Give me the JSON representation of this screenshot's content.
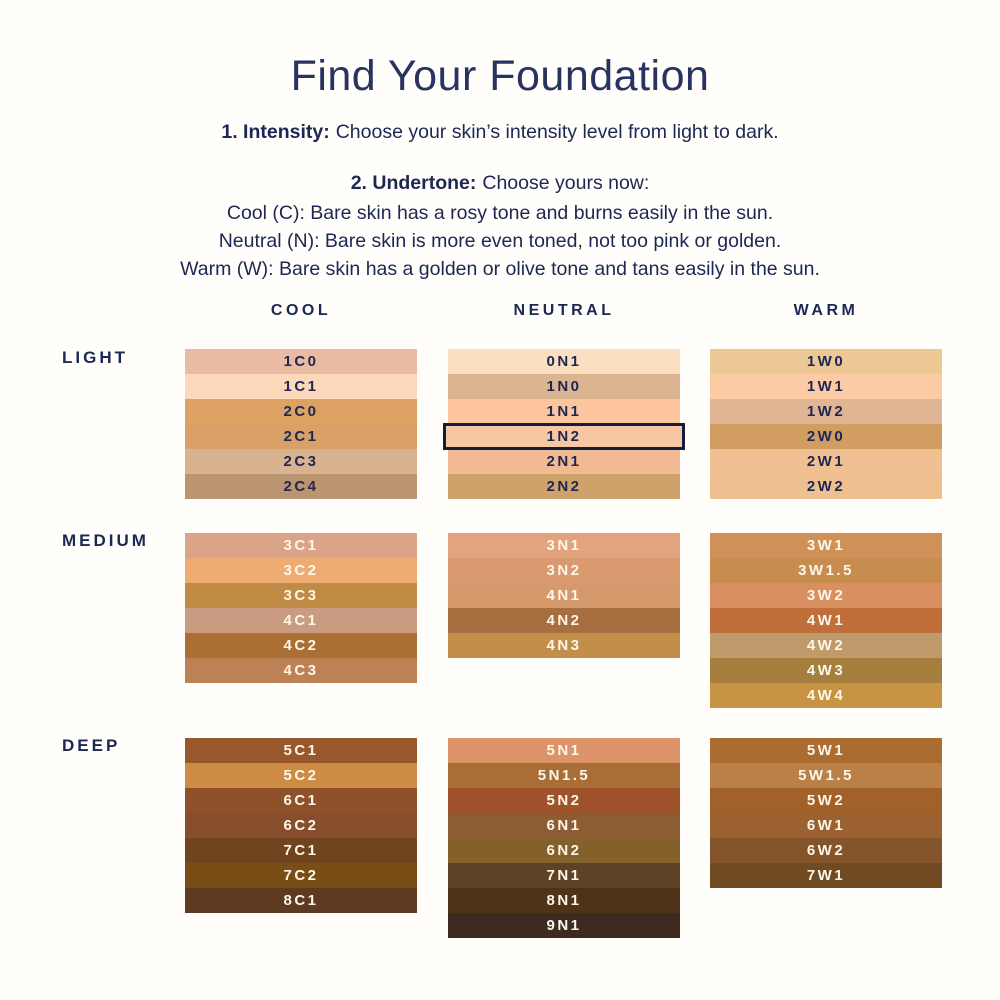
{
  "page": {
    "title": "Find Your Foundation",
    "steps": {
      "intensity_label": "1. Intensity:",
      "intensity_text": "Choose your skin’s intensity level from light to dark.",
      "undertone_label": "2. Undertone:",
      "undertone_text": "Choose yours now:",
      "undertone_lines": [
        "Cool (C): Bare skin has a rosy tone and burns easily in the sun.",
        "Neutral (N): Bare skin is more even toned, not too pink or golden.",
        "Warm (W): Bare skin has a golden or olive tone and tans easily in the sun."
      ]
    }
  },
  "colors": {
    "navy_text": "#1d2753",
    "swatch_text_dark_groups": "#fdf7ea",
    "highlight_border": "#141c3e",
    "background": "#fffefa"
  },
  "selected_shade": "1N2",
  "rows": [
    {
      "id": "light",
      "label": "LIGHT"
    },
    {
      "id": "medium",
      "label": "MEDIUM"
    },
    {
      "id": "deep",
      "label": "DEEP"
    }
  ],
  "columns": [
    {
      "id": "cool",
      "header": "COOL",
      "groups": {
        "light": [
          {
            "code": "1C0",
            "color": "#e9bba3"
          },
          {
            "code": "1C1",
            "color": "#fcd8ba"
          },
          {
            "code": "2C0",
            "color": "#dda164"
          },
          {
            "code": "2C1",
            "color": "#d9a067"
          },
          {
            "code": "2C3",
            "color": "#d9b38f"
          },
          {
            "code": "2C4",
            "color": "#bb9470"
          }
        ],
        "medium": [
          {
            "code": "3C1",
            "color": "#dba489"
          },
          {
            "code": "3C2",
            "color": "#eeab72"
          },
          {
            "code": "3C3",
            "color": "#c08b44"
          },
          {
            "code": "4C1",
            "color": "#c99b80"
          },
          {
            "code": "4C2",
            "color": "#a96f33"
          },
          {
            "code": "4C3",
            "color": "#bd8156"
          }
        ],
        "deep": [
          {
            "code": "5C1",
            "color": "#99572c"
          },
          {
            "code": "5C2",
            "color": "#cd8c43"
          },
          {
            "code": "6C1",
            "color": "#8f5129"
          },
          {
            "code": "6C2",
            "color": "#874d2d"
          },
          {
            "code": "7C1",
            "color": "#6f441f"
          },
          {
            "code": "7C2",
            "color": "#7a4d16"
          },
          {
            "code": "8C1",
            "color": "#5f3a22"
          }
        ]
      }
    },
    {
      "id": "neutral",
      "header": "NEUTRAL",
      "groups": {
        "light": [
          {
            "code": "0N1",
            "color": "#fadfc0"
          },
          {
            "code": "1N0",
            "color": "#dbb592"
          },
          {
            "code": "1N1",
            "color": "#fcc59e"
          },
          {
            "code": "1N2",
            "color": "#f7c6a3"
          },
          {
            "code": "2N1",
            "color": "#f2ba92"
          },
          {
            "code": "2N2",
            "color": "#cda26b"
          }
        ],
        "medium": [
          {
            "code": "3N1",
            "color": "#e1a47e"
          },
          {
            "code": "3N2",
            "color": "#d89a6e"
          },
          {
            "code": "4N1",
            "color": "#d49a6c"
          },
          {
            "code": "4N2",
            "color": "#a76f3f"
          },
          {
            "code": "4N3",
            "color": "#c28f4a"
          }
        ],
        "deep": [
          {
            "code": "5N1",
            "color": "#dd9368"
          },
          {
            "code": "5N1.5",
            "color": "#a96e35"
          },
          {
            "code": "5N2",
            "color": "#a0522a"
          },
          {
            "code": "6N1",
            "color": "#8d5c33"
          },
          {
            "code": "6N2",
            "color": "#84602a"
          },
          {
            "code": "7N1",
            "color": "#5e4226"
          },
          {
            "code": "8N1",
            "color": "#4e3319"
          },
          {
            "code": "9N1",
            "color": "#3d2a20"
          }
        ]
      }
    },
    {
      "id": "warm",
      "header": "WARM",
      "groups": {
        "light": [
          {
            "code": "1W0",
            "color": "#ecc994"
          },
          {
            "code": "1W1",
            "color": "#fccba3"
          },
          {
            "code": "1W2",
            "color": "#dfb594"
          },
          {
            "code": "2W0",
            "color": "#d19d61"
          },
          {
            "code": "2W1",
            "color": "#f0c093"
          },
          {
            "code": "2W2",
            "color": "#eec08f"
          }
        ],
        "medium": [
          {
            "code": "3W1",
            "color": "#cf9158"
          },
          {
            "code": "3W1.5",
            "color": "#c68d4f"
          },
          {
            "code": "3W2",
            "color": "#d98f60"
          },
          {
            "code": "4W1",
            "color": "#c06f3a"
          },
          {
            "code": "4W2",
            "color": "#bf9a6a"
          },
          {
            "code": "4W3",
            "color": "#a67f3f"
          },
          {
            "code": "4W4",
            "color": "#c79443"
          }
        ],
        "deep": [
          {
            "code": "5W1",
            "color": "#ab6c31"
          },
          {
            "code": "5W1.5",
            "color": "#b98148"
          },
          {
            "code": "5W2",
            "color": "#a26128"
          },
          {
            "code": "6W1",
            "color": "#9b6130"
          },
          {
            "code": "6W2",
            "color": "#84552b"
          },
          {
            "code": "7W1",
            "color": "#6f4a22"
          }
        ]
      }
    }
  ]
}
